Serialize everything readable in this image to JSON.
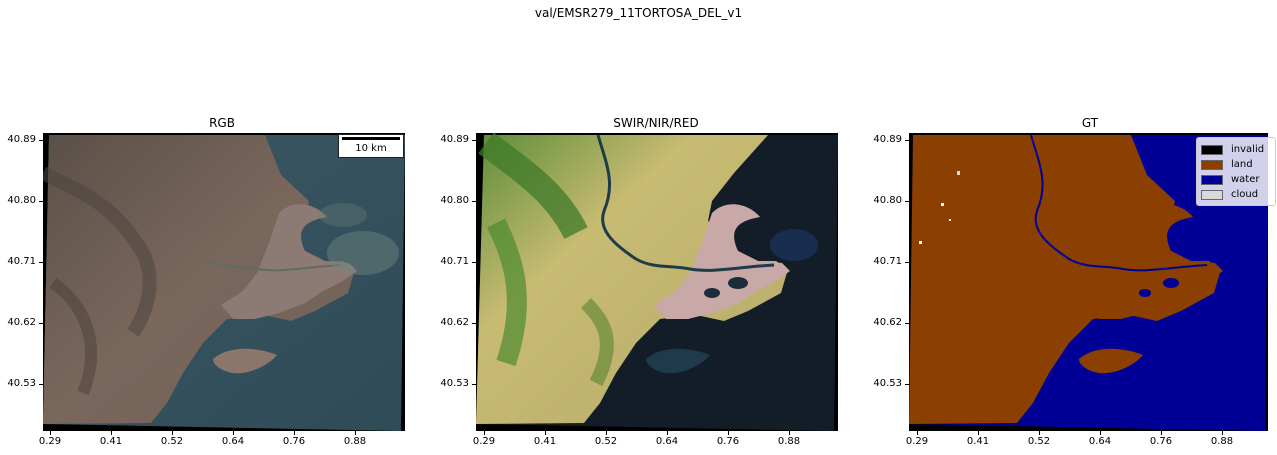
{
  "figure": {
    "suptitle": "val/EMSR279_11TORTOSA_DEL_v1"
  },
  "panels": [
    {
      "title": "RGB"
    },
    {
      "title": "SWIR/NIR/RED"
    },
    {
      "title": "GT"
    }
  ],
  "axes": {
    "yticks": [
      "40.89",
      "40.80",
      "40.71",
      "40.62",
      "40.53"
    ],
    "xticks": [
      "0.29",
      "0.41",
      "0.52",
      "0.64",
      "0.76",
      "0.88"
    ]
  },
  "scalebar": {
    "label": "10 km"
  },
  "legend": {
    "items": [
      {
        "label": "invalid",
        "color": "#000000"
      },
      {
        "label": "land",
        "color": "#8b3f00"
      },
      {
        "label": "water",
        "color": "#000096"
      },
      {
        "label": "cloud",
        "color": "#d9d9d9"
      }
    ]
  },
  "colors": {
    "rgb_land": "#7d6a5f",
    "rgb_sea": "#3f5a64",
    "swir_land": "#b8ad6a",
    "swir_sea": "#14202c",
    "gt_land": "#8b3f00",
    "gt_water": "#000096"
  }
}
